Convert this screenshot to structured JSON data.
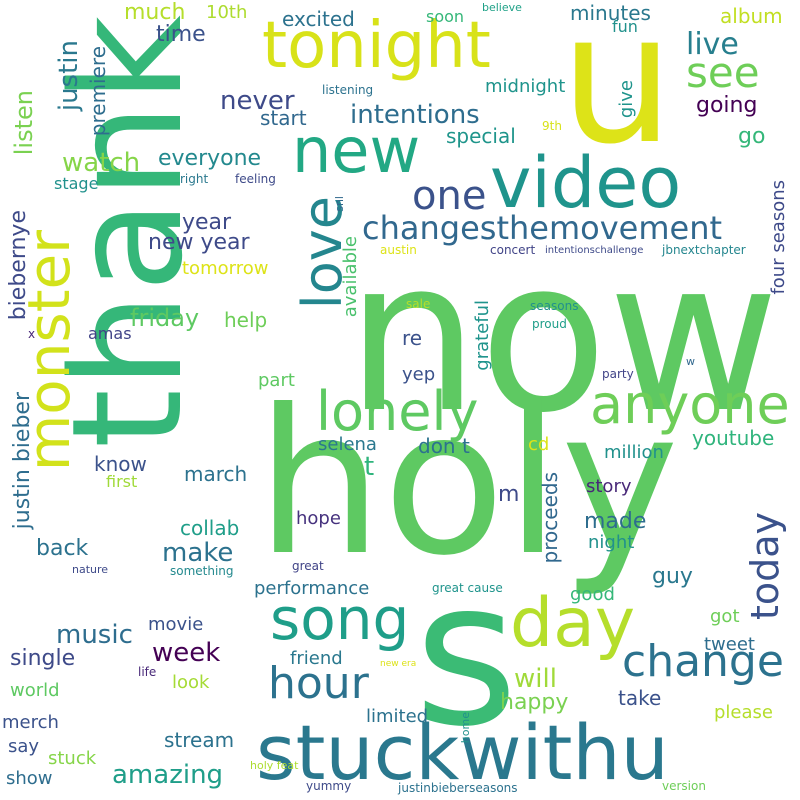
{
  "words": [
    {
      "text": "thank",
      "color": "#35b779",
      "vertical": true
    },
    {
      "text": "now",
      "color": "#5ec962",
      "vertical": false
    },
    {
      "text": "holy",
      "color": "#5ec962",
      "vertical": false
    },
    {
      "text": "u",
      "color": "#dde318",
      "vertical": false
    },
    {
      "text": "s",
      "color": "#3bbb75",
      "vertical": false
    },
    {
      "text": "video",
      "color": "#1f948c",
      "vertical": false
    },
    {
      "text": "stuckwithu",
      "color": "#2a788e",
      "vertical": false
    },
    {
      "text": "monster",
      "color": "#d2e21b",
      "vertical": true
    },
    {
      "text": "tonight",
      "color": "#d8e219",
      "vertical": false
    },
    {
      "text": "new",
      "color": "#22a884",
      "vertical": false
    },
    {
      "text": "love",
      "color": "#24868e",
      "vertical": true
    },
    {
      "text": "day",
      "color": "#b5de2b",
      "vertical": false
    },
    {
      "text": "anyone",
      "color": "#6ece58",
      "vertical": false
    },
    {
      "text": "lonely",
      "color": "#5ec962",
      "vertical": false
    },
    {
      "text": "song",
      "color": "#1f9e89",
      "vertical": false
    },
    {
      "text": "change",
      "color": "#2c728e",
      "vertical": false
    },
    {
      "text": "hour",
      "color": "#2c728e",
      "vertical": false
    },
    {
      "text": "today",
      "color": "#3b528b",
      "vertical": true
    },
    {
      "text": "changesthemovement",
      "color": "#31688e",
      "vertical": false
    },
    {
      "text": "one",
      "color": "#3b528b",
      "vertical": false
    },
    {
      "text": "see",
      "color": "#6ece58",
      "vertical": false
    },
    {
      "text": "live",
      "color": "#277f8e",
      "vertical": false
    },
    {
      "text": "intentions",
      "color": "#2e6d8e",
      "vertical": false
    },
    {
      "text": "never",
      "color": "#3e4a89",
      "vertical": false
    },
    {
      "text": "justin",
      "color": "#2a788e",
      "vertical": true
    },
    {
      "text": "premiere",
      "color": "#2e6d8e",
      "vertical": true
    },
    {
      "text": "listen",
      "color": "#7ad151",
      "vertical": true
    },
    {
      "text": "watch",
      "color": "#86d549",
      "vertical": false
    },
    {
      "text": "everyone",
      "color": "#23898e",
      "vertical": false
    },
    {
      "text": "special",
      "color": "#1f958b",
      "vertical": false
    },
    {
      "text": "going",
      "color": "#440154",
      "vertical": false
    },
    {
      "text": "go",
      "color": "#35b779",
      "vertical": false
    },
    {
      "text": "four seasons",
      "color": "#3e4a89",
      "vertical": true
    },
    {
      "text": "much",
      "color": "#b5de2b",
      "vertical": false
    },
    {
      "text": "10th",
      "color": "#addc30",
      "vertical": false
    },
    {
      "text": "time",
      "color": "#3b528b",
      "vertical": false
    },
    {
      "text": "excited",
      "color": "#2c728e",
      "vertical": false
    },
    {
      "text": "soon",
      "color": "#35b779",
      "vertical": false
    },
    {
      "text": "minutes",
      "color": "#2a788e",
      "vertical": false
    },
    {
      "text": "fun",
      "color": "#21918c",
      "vertical": false
    },
    {
      "text": "album",
      "color": "#c2df23",
      "vertical": false
    },
    {
      "text": "believe",
      "color": "#1fa187",
      "vertical": false
    },
    {
      "text": "listening",
      "color": "#2c728e",
      "vertical": false
    },
    {
      "text": "midnight",
      "color": "#1f948c",
      "vertical": false
    },
    {
      "text": "start",
      "color": "#31688e",
      "vertical": false
    },
    {
      "text": "give",
      "color": "#1f948c",
      "vertical": true
    },
    {
      "text": "9th",
      "color": "#d8e219",
      "vertical": false
    },
    {
      "text": "year",
      "color": "#3e4a89",
      "vertical": false
    },
    {
      "text": "new year",
      "color": "#3e4a89",
      "vertical": false
    },
    {
      "text": "tomorrow",
      "color": "#dde318",
      "vertical": false
    },
    {
      "text": "biebernye",
      "color": "#3e4a89",
      "vertical": true
    },
    {
      "text": "stage",
      "color": "#21918c",
      "vertical": false
    },
    {
      "text": "right",
      "color": "#2a788e",
      "vertical": false
    },
    {
      "text": "feeling",
      "color": "#3e4a89",
      "vertical": false
    },
    {
      "text": "snl",
      "color": "#31688e",
      "vertical": true
    },
    {
      "text": "available",
      "color": "#4ac16d",
      "vertical": true
    },
    {
      "text": "austin",
      "color": "#dde318",
      "vertical": false
    },
    {
      "text": "concert",
      "color": "#404387",
      "vertical": false
    },
    {
      "text": "intentionschallenge",
      "color": "#3e4a89",
      "vertical": false
    },
    {
      "text": "jbnextchapter",
      "color": "#24868e",
      "vertical": false
    },
    {
      "text": "friday",
      "color": "#5ec962",
      "vertical": false
    },
    {
      "text": "help",
      "color": "#6ece58",
      "vertical": false
    },
    {
      "text": "amas",
      "color": "#404387",
      "vertical": false
    },
    {
      "text": "re",
      "color": "#3b528b",
      "vertical": false
    },
    {
      "text": "sale",
      "color": "#b5de2b",
      "vertical": false
    },
    {
      "text": "seasons",
      "color": "#21918c",
      "vertical": false
    },
    {
      "text": "proud",
      "color": "#1f9e89",
      "vertical": false
    },
    {
      "text": "grateful",
      "color": "#1f948c",
      "vertical": true
    },
    {
      "text": "x",
      "color": "#482878",
      "vertical": false
    },
    {
      "text": "w",
      "color": "#31688e",
      "vertical": false
    },
    {
      "text": "part",
      "color": "#5ec962",
      "vertical": false
    },
    {
      "text": "yep",
      "color": "#3b528b",
      "vertical": false
    },
    {
      "text": "party",
      "color": "#414487",
      "vertical": false
    },
    {
      "text": "justin bieber",
      "color": "#2e6d8e",
      "vertical": true
    },
    {
      "text": "selena",
      "color": "#2a788e",
      "vertical": false
    },
    {
      "text": "don t",
      "color": "#2c728e",
      "vertical": false
    },
    {
      "text": "t",
      "color": "#2fb47c",
      "vertical": false
    },
    {
      "text": "cd",
      "color": "#dde318",
      "vertical": false
    },
    {
      "text": "youtube",
      "color": "#2fb47c",
      "vertical": false
    },
    {
      "text": "million",
      "color": "#21918c",
      "vertical": false
    },
    {
      "text": "know",
      "color": "#3b528b",
      "vertical": false
    },
    {
      "text": "march",
      "color": "#2c728e",
      "vertical": false
    },
    {
      "text": "first",
      "color": "#a0da39",
      "vertical": false
    },
    {
      "text": "m",
      "color": "#3e4a89",
      "vertical": false
    },
    {
      "text": "story",
      "color": "#482878",
      "vertical": false
    },
    {
      "text": "proceeds",
      "color": "#31688e",
      "vertical": true
    },
    {
      "text": "made",
      "color": "#2e6d8e",
      "vertical": false
    },
    {
      "text": "collab",
      "color": "#1f9e89",
      "vertical": false
    },
    {
      "text": "hope",
      "color": "#46327e",
      "vertical": false
    },
    {
      "text": "night",
      "color": "#21918c",
      "vertical": false
    },
    {
      "text": "back",
      "color": "#2c728e",
      "vertical": false
    },
    {
      "text": "make",
      "color": "#2c728e",
      "vertical": false
    },
    {
      "text": "guy",
      "color": "#2a788e",
      "vertical": false
    },
    {
      "text": "nature",
      "color": "#3e4a89",
      "vertical": false
    },
    {
      "text": "something",
      "color": "#23898e",
      "vertical": false
    },
    {
      "text": "great",
      "color": "#404387",
      "vertical": false
    },
    {
      "text": "performance",
      "color": "#2c728e",
      "vertical": false
    },
    {
      "text": "great cause",
      "color": "#1f948c",
      "vertical": false
    },
    {
      "text": "good",
      "color": "#35b779",
      "vertical": false
    },
    {
      "text": "music",
      "color": "#2e6d8e",
      "vertical": false
    },
    {
      "text": "movie",
      "color": "#3b528b",
      "vertical": false
    },
    {
      "text": "got",
      "color": "#6ece58",
      "vertical": false
    },
    {
      "text": "tweet",
      "color": "#2e6d8e",
      "vertical": false
    },
    {
      "text": "week",
      "color": "#440154",
      "vertical": false
    },
    {
      "text": "single",
      "color": "#3e4a89",
      "vertical": false
    },
    {
      "text": "friend",
      "color": "#2a788e",
      "vertical": false
    },
    {
      "text": "look",
      "color": "#a5db36",
      "vertical": false
    },
    {
      "text": "will",
      "color": "#a0da39",
      "vertical": false
    },
    {
      "text": "take",
      "color": "#3b528b",
      "vertical": false
    },
    {
      "text": "world",
      "color": "#5ec962",
      "vertical": false
    },
    {
      "text": "happy",
      "color": "#7ad151",
      "vertical": false
    },
    {
      "text": "merch",
      "color": "#3b528b",
      "vertical": false
    },
    {
      "text": "limited",
      "color": "#2c728e",
      "vertical": false
    },
    {
      "text": "please",
      "color": "#b5de2b",
      "vertical": false
    },
    {
      "text": "say",
      "color": "#3b528b",
      "vertical": false
    },
    {
      "text": "stream",
      "color": "#2c728e",
      "vertical": false
    },
    {
      "text": "show",
      "color": "#2e6d8e",
      "vertical": false
    },
    {
      "text": "stuck",
      "color": "#86d549",
      "vertical": false
    },
    {
      "text": "amazing",
      "color": "#1f9e89",
      "vertical": false
    },
    {
      "text": "holy feat",
      "color": "#addc30",
      "vertical": false
    },
    {
      "text": "life",
      "color": "#482878",
      "vertical": false
    },
    {
      "text": "new era",
      "color": "#dde318",
      "vertical": false
    },
    {
      "text": "home",
      "color": "#21918c",
      "vertical": true
    },
    {
      "text": "version",
      "color": "#6ece58",
      "vertical": false
    },
    {
      "text": "yummy",
      "color": "#3e4a89",
      "vertical": false
    },
    {
      "text": "justinbieberseasons",
      "color": "#2c728e",
      "vertical": false
    }
  ]
}
